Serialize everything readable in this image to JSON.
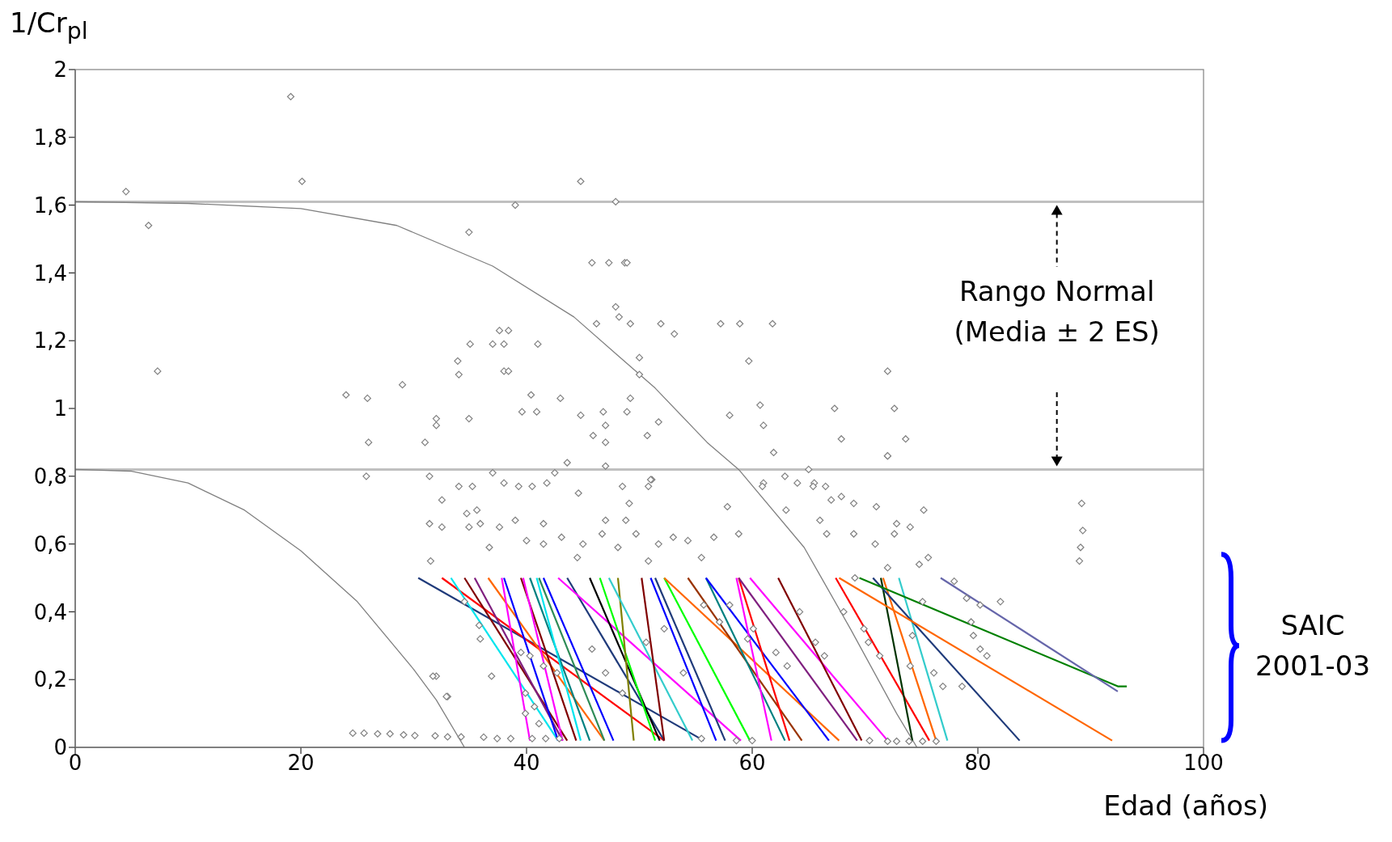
{
  "chart_data": {
    "type": "scatter",
    "ylabel": "1/Cr$_{pl}$",
    "xlabel": "Edad (años)",
    "xlim": [
      0,
      100
    ],
    "xticks": [
      0,
      20,
      40,
      60,
      80,
      100
    ],
    "ylim": [
      0,
      2
    ],
    "yticks": [
      0,
      {
        "value": 0.2,
        "label": "0,2"
      },
      {
        "value": 0.4,
        "label": "0,4"
      },
      {
        "value": 0.6,
        "label": "0,6"
      },
      {
        "value": 0.8,
        "label": "0,8"
      },
      1,
      {
        "value": 1.2,
        "label": "1,2"
      },
      {
        "value": 1.4,
        "label": "1,4"
      },
      {
        "value": 1.6,
        "label": "1,6"
      },
      {
        "value": 1.8,
        "label": "1,8"
      },
      2
    ],
    "ref_lines": [
      {
        "axis": "y",
        "value": 1.61,
        "color": "#c0c0c0"
      },
      {
        "axis": "y",
        "value": 0.82,
        "color": "#c0c0c0"
      }
    ],
    "annotations": [
      "Rango Normal (Media ± 2 ES)",
      "SAIC 2001-03"
    ],
    "series": [
      {
        "type": "scatter",
        "color": "#808080",
        "marker": "diamond",
        "x": [
          4.5,
          6.5,
          7.3,
          19.1,
          20.1,
          24,
          25.9,
          26,
          25.8,
          29,
          34.9,
          35,
          33.9,
          34,
          32,
          32,
          31,
          34.9,
          39,
          37.6,
          38.4,
          37,
          38,
          41,
          38,
          38.4,
          39.6,
          40.4,
          40.9,
          43,
          44.8,
          45.8,
          47.3,
          48.7,
          47.9,
          48.2,
          49.2,
          47.9,
          48.9,
          50,
          50,
          51.9,
          53.1,
          46.2,
          57.2,
          58.9,
          61.8,
          59.7,
          58,
          60.7,
          61,
          61.9,
          67.3,
          67.9,
          72,
          72.6,
          73.6,
          72,
          89.2,
          89.3,
          89.1,
          89,
          44.8,
          46.8,
          47,
          45.9,
          47,
          49.2,
          48.9,
          51.7,
          50.7,
          51.1,
          61,
          65,
          65.5,
          31.4,
          32.5,
          34,
          35.2,
          34.7,
          35.6,
          37,
          38,
          39.3,
          40.5,
          41.8,
          42.5,
          43.6,
          44.6,
          47,
          48.5,
          49.1,
          50.8,
          51,
          31.4,
          32.5,
          34.9,
          35.9,
          36.7,
          37.6,
          39,
          40,
          41.5,
          41.5,
          43.1,
          44.5,
          45,
          46.7,
          47,
          48.1,
          48.8,
          49.7,
          50.8,
          51.7,
          53,
          54.3,
          55.5,
          56.6,
          58.8,
          57.8,
          60.9,
          62.9,
          64,
          65.4,
          66.5,
          67,
          67.9,
          63,
          66,
          66.6,
          69,
          69,
          71,
          72.8,
          72.6,
          74,
          75.2,
          72,
          70.9,
          72,
          74.8,
          75.6,
          31.5,
          34.5,
          35.8,
          35.9,
          32,
          33,
          36.9,
          39.5,
          40.3,
          39.9,
          40.7,
          39.9,
          41.1,
          41.5,
          42.7,
          45.8,
          47,
          48.5,
          50.6,
          52.2,
          53.9,
          55.7,
          57.1,
          58,
          59.6,
          60.1,
          62.1,
          63.1,
          64.2,
          65.6,
          66.4,
          68.1,
          69.1,
          69.9,
          70.3,
          71.3,
          74,
          74.2,
          75.1,
          76.1,
          76.9,
          77.9,
          79,
          80.2,
          82,
          79.4,
          79.6,
          80.2,
          80.8,
          78.6,
          31.7,
          32.9,
          24.6,
          25.6,
          26.8,
          27.9,
          29.1,
          30.1,
          31.9,
          33,
          34.2,
          36.2,
          37.4,
          38.6,
          40.5,
          41.7,
          42.9,
          55.5,
          58.6,
          60,
          70.4,
          72,
          72.8,
          73.9,
          75.1,
          76.3
        ],
        "values": [
          1.64,
          1.54,
          1.11,
          1.92,
          1.67,
          1.04,
          1.03,
          0.9,
          0.8,
          1.07,
          1.52,
          1.19,
          1.14,
          1.1,
          0.97,
          0.95,
          0.9,
          0.97,
          1.6,
          1.23,
          1.23,
          1.19,
          1.19,
          1.19,
          1.11,
          1.11,
          0.99,
          1.04,
          0.99,
          1.03,
          1.67,
          1.43,
          1.43,
          1.43,
          1.3,
          1.27,
          1.25,
          1.61,
          1.43,
          1.15,
          1.1,
          1.25,
          1.22,
          1.25,
          1.25,
          1.25,
          1.25,
          1.14,
          0.98,
          1.01,
          0.95,
          0.87,
          1,
          0.91,
          1.11,
          1,
          0.91,
          0.86,
          0.72,
          0.64,
          0.59,
          0.55,
          0.98,
          0.99,
          0.95,
          0.92,
          0.9,
          1.03,
          0.99,
          0.96,
          0.92,
          0.79,
          0.78,
          0.82,
          0.78,
          0.8,
          0.73,
          0.77,
          0.77,
          0.69,
          0.7,
          0.81,
          0.78,
          0.77,
          0.77,
          0.78,
          0.81,
          0.84,
          0.75,
          0.83,
          0.77,
          0.72,
          0.77,
          0.79,
          0.66,
          0.65,
          0.65,
          0.66,
          0.59,
          0.65,
          0.67,
          0.61,
          0.66,
          0.6,
          0.62,
          0.56,
          0.6,
          0.63,
          0.67,
          0.59,
          0.67,
          0.63,
          0.55,
          0.6,
          0.62,
          0.61,
          0.56,
          0.62,
          0.63,
          0.71,
          0.77,
          0.8,
          0.78,
          0.77,
          0.77,
          0.73,
          0.74,
          0.7,
          0.67,
          0.63,
          0.63,
          0.72,
          0.71,
          0.66,
          0.63,
          0.65,
          0.7,
          0.86,
          0.6,
          0.53,
          0.54,
          0.56,
          0.55,
          0.43,
          0.36,
          0.32,
          0.21,
          0.15,
          0.21,
          0.28,
          0.27,
          0.16,
          0.12,
          0.1,
          0.07,
          0.24,
          0.22,
          0.29,
          0.22,
          0.16,
          0.31,
          0.35,
          0.22,
          0.42,
          0.37,
          0.42,
          0.32,
          0.35,
          0.28,
          0.24,
          0.4,
          0.31,
          0.27,
          0.4,
          0.5,
          0.35,
          0.31,
          0.27,
          0.24,
          0.33,
          0.43,
          0.22,
          0.18,
          0.49,
          0.44,
          0.42,
          0.43,
          0.37,
          0.33,
          0.29,
          0.27,
          0.18,
          0.21,
          0.15,
          0.042,
          0.042,
          0.04,
          0.04,
          0.037,
          0.035,
          0.034,
          0.031,
          0.031,
          0.03,
          0.026,
          0.026,
          0.026,
          0.026,
          0.026,
          0.026,
          0.02,
          0.02,
          0.02,
          0.018,
          0.018,
          0.018,
          0.018,
          0.018
        ]
      },
      {
        "type": "line",
        "color": "#808080",
        "x": [
          0,
          10,
          20,
          28.5,
          37,
          44.2,
          51.4,
          56,
          58.8,
          64.6,
          68.7,
          72.8,
          74.6
        ],
        "values": [
          1.61,
          1.605,
          1.59,
          1.54,
          1.42,
          1.27,
          1.06,
          0.9,
          0.82,
          0.59,
          0.35,
          0.1,
          0
        ]
      },
      {
        "type": "line",
        "color": "#808080",
        "x": [
          0,
          5,
          10,
          15,
          20,
          25,
          30,
          32,
          34.5
        ],
        "values": [
          0.82,
          0.815,
          0.78,
          0.7,
          0.58,
          0.43,
          0.23,
          0.14,
          0
        ]
      },
      {
        "type": "line",
        "color": "#1f3a7a",
        "x": [
          30.4,
          55.7
        ],
        "values": [
          0.5,
          0.02
        ]
      },
      {
        "type": "line",
        "color": "#ff0000",
        "x": [
          32.5,
          52.2
        ],
        "values": [
          0.5,
          0.02
        ]
      },
      {
        "type": "line",
        "color": "#00e5ee",
        "x": [
          33.3,
          42.8
        ],
        "values": [
          0.5,
          0.02
        ]
      },
      {
        "type": "line",
        "color": "#800000",
        "x": [
          34.5,
          43.6
        ],
        "values": [
          0.5,
          0.02
        ]
      },
      {
        "type": "line",
        "color": "#7f1f7f",
        "x": [
          35.4,
          43.2
        ],
        "values": [
          0.5,
          0.02
        ]
      },
      {
        "type": "line",
        "color": "#ff6600",
        "x": [
          36.6,
          46.9
        ],
        "values": [
          0.5,
          0.02
        ]
      },
      {
        "type": "line",
        "color": "#ff00ff",
        "x": [
          37.8,
          40.3
        ],
        "values": [
          0.5,
          0.02
        ]
      },
      {
        "type": "line",
        "color": "#0000ff",
        "x": [
          38,
          42.8
        ],
        "values": [
          0.5,
          0.02
        ]
      },
      {
        "type": "line",
        "color": "#800000",
        "x": [
          39.5,
          44.4
        ],
        "values": [
          0.5,
          0.02
        ]
      },
      {
        "type": "line",
        "color": "#ff00ff",
        "x": [
          39.7,
          43.2
        ],
        "values": [
          0.5,
          0.02
        ]
      },
      {
        "type": "line",
        "color": "#008080",
        "x": [
          40.3,
          45.6
        ],
        "values": [
          0.5,
          0.02
        ]
      },
      {
        "type": "line",
        "color": "#00e5ee",
        "x": [
          40.9,
          44.8
        ],
        "values": [
          0.5,
          0.02
        ]
      },
      {
        "type": "line",
        "color": "#2e8b57",
        "x": [
          41.1,
          46.9
        ],
        "values": [
          0.5,
          0.02
        ]
      },
      {
        "type": "line",
        "color": "#0000ff",
        "x": [
          41.5,
          47.7
        ],
        "values": [
          0.5,
          0.02
        ]
      },
      {
        "type": "line",
        "color": "#1f3a7a",
        "x": [
          43.6,
          52.2
        ],
        "values": [
          0.5,
          0.02
        ]
      },
      {
        "type": "line",
        "color": "#ff00ff",
        "x": [
          42.8,
          59
        ],
        "values": [
          0.5,
          0.02
        ]
      },
      {
        "type": "line",
        "color": "#000000",
        "x": [
          45.6,
          51.8
        ],
        "values": [
          0.5,
          0.02
        ]
      },
      {
        "type": "line",
        "color": "#00ff00",
        "x": [
          46.5,
          51.4
        ],
        "values": [
          0.5,
          0.02
        ]
      },
      {
        "type": "line",
        "color": "#808000",
        "x": [
          48.1,
          49.5
        ],
        "values": [
          0.5,
          0.02
        ]
      },
      {
        "type": "line",
        "color": "#33cccc",
        "x": [
          47.3,
          54.7
        ],
        "values": [
          0.5,
          0.02
        ]
      },
      {
        "type": "line",
        "color": "#800000",
        "x": [
          50.2,
          52.2
        ],
        "values": [
          0.5,
          0.02
        ]
      },
      {
        "type": "line",
        "color": "#1f3a7a",
        "x": [
          51.4,
          57.6
        ],
        "values": [
          0.5,
          0.02
        ]
      },
      {
        "type": "line",
        "color": "#0000ff",
        "x": [
          51,
          56.8
        ],
        "values": [
          0.5,
          0.02
        ]
      },
      {
        "type": "line",
        "color": "#00ff00",
        "x": [
          52.2,
          59.8
        ],
        "values": [
          0.5,
          0.02
        ]
      },
      {
        "type": "line",
        "color": "#ff6600",
        "x": [
          52.2,
          67.7
        ],
        "values": [
          0.5,
          0.02
        ]
      },
      {
        "type": "line",
        "color": "#993300",
        "x": [
          54.3,
          64.4
        ],
        "values": [
          0.5,
          0.02
        ]
      },
      {
        "type": "line",
        "color": "#008080",
        "x": [
          55.9,
          62.9
        ],
        "values": [
          0.5,
          0.02
        ]
      },
      {
        "type": "line",
        "color": "#0000ff",
        "x": [
          55.9,
          66.8
        ],
        "values": [
          0.5,
          0.02
        ]
      },
      {
        "type": "line",
        "color": "#ff00ff",
        "x": [
          58.6,
          61.7
        ],
        "values": [
          0.5,
          0.02
        ]
      },
      {
        "type": "line",
        "color": "#ff0000",
        "x": [
          58.8,
          63.3
        ],
        "values": [
          0.5,
          0.02
        ]
      },
      {
        "type": "line",
        "color": "#7f1f7f",
        "x": [
          58.8,
          69.3
        ],
        "values": [
          0.5,
          0.02
        ]
      },
      {
        "type": "line",
        "color": "#ff00ff",
        "x": [
          59.8,
          72
        ],
        "values": [
          0.5,
          0.02
        ]
      },
      {
        "type": "line",
        "color": "#800000",
        "x": [
          62.3,
          69.7
        ],
        "values": [
          0.5,
          0.02
        ]
      },
      {
        "type": "line",
        "color": "#ff0000",
        "x": [
          67.4,
          75.7
        ],
        "values": [
          0.5,
          0.02
        ]
      },
      {
        "type": "line",
        "color": "#003300",
        "x": [
          71.4,
          74.2
        ],
        "values": [
          0.5,
          0.02
        ]
      },
      {
        "type": "line",
        "color": "#ff6600",
        "x": [
          71.6,
          76.3
        ],
        "values": [
          0.5,
          0.02
        ]
      },
      {
        "type": "line",
        "color": "#33cccc",
        "x": [
          73,
          77.3
        ],
        "values": [
          0.5,
          0.02
        ]
      },
      {
        "type": "line",
        "color": "#1f3a7a",
        "x": [
          70.7,
          83.7
        ],
        "values": [
          0.5,
          0.02
        ]
      },
      {
        "type": "line",
        "color": "#ff6600",
        "x": [
          67.7,
          91.9
        ],
        "values": [
          0.5,
          0.02
        ]
      },
      {
        "type": "line",
        "color": "#008000",
        "x": [
          69.5,
          92.4,
          93.2
        ],
        "values": [
          0.5,
          0.18,
          0.18
        ]
      },
      {
        "type": "line",
        "color": "#6666aa",
        "x": [
          76.7,
          92.4
        ],
        "values": [
          0.5,
          0.165
        ]
      }
    ]
  }
}
